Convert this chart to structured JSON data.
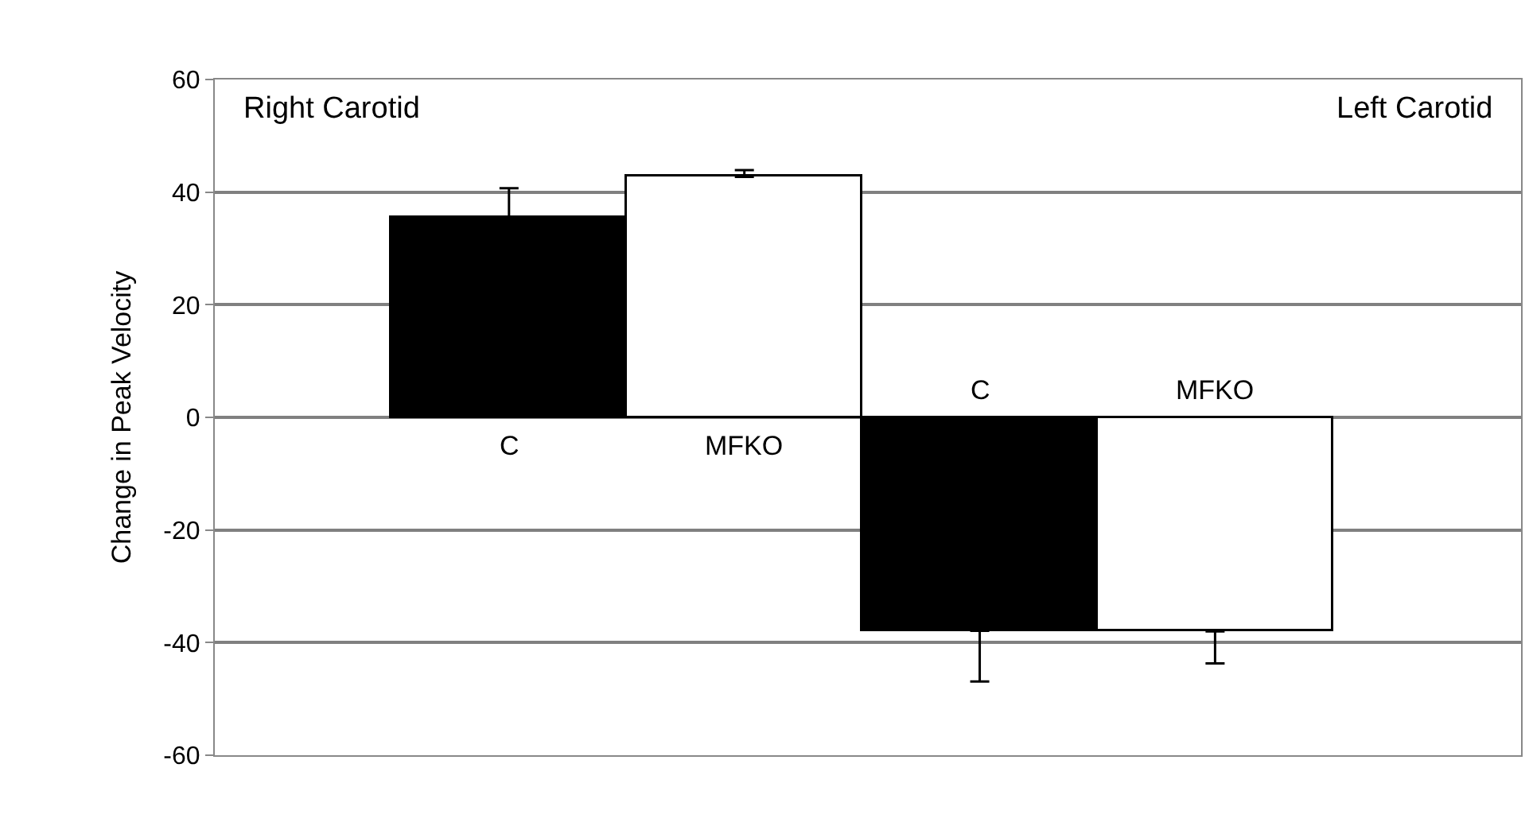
{
  "chart_data": {
    "type": "bar",
    "ylabel": "Change in Peak Velocity",
    "categories": [
      "C",
      "MFKO",
      "C",
      "MFKO"
    ],
    "values": [
      35.4,
      42.7,
      -37.9,
      -38.0
    ],
    "colors": [
      "#000000",
      "#ffffff",
      "#000000",
      "#ffffff"
    ],
    "errors": [
      [
        35.4,
        40.7
      ],
      [
        42.7,
        43.9
      ],
      [
        -46.9,
        -37.9
      ],
      [
        -43.7,
        -38.0
      ]
    ],
    "ylim": [
      -60,
      60
    ],
    "yticks": [
      -60,
      -40,
      -20,
      0,
      20,
      40,
      60
    ],
    "grid": "y",
    "tick_labels": "y",
    "annotations": [
      "Right Carotid",
      "Left Carotid"
    ]
  }
}
